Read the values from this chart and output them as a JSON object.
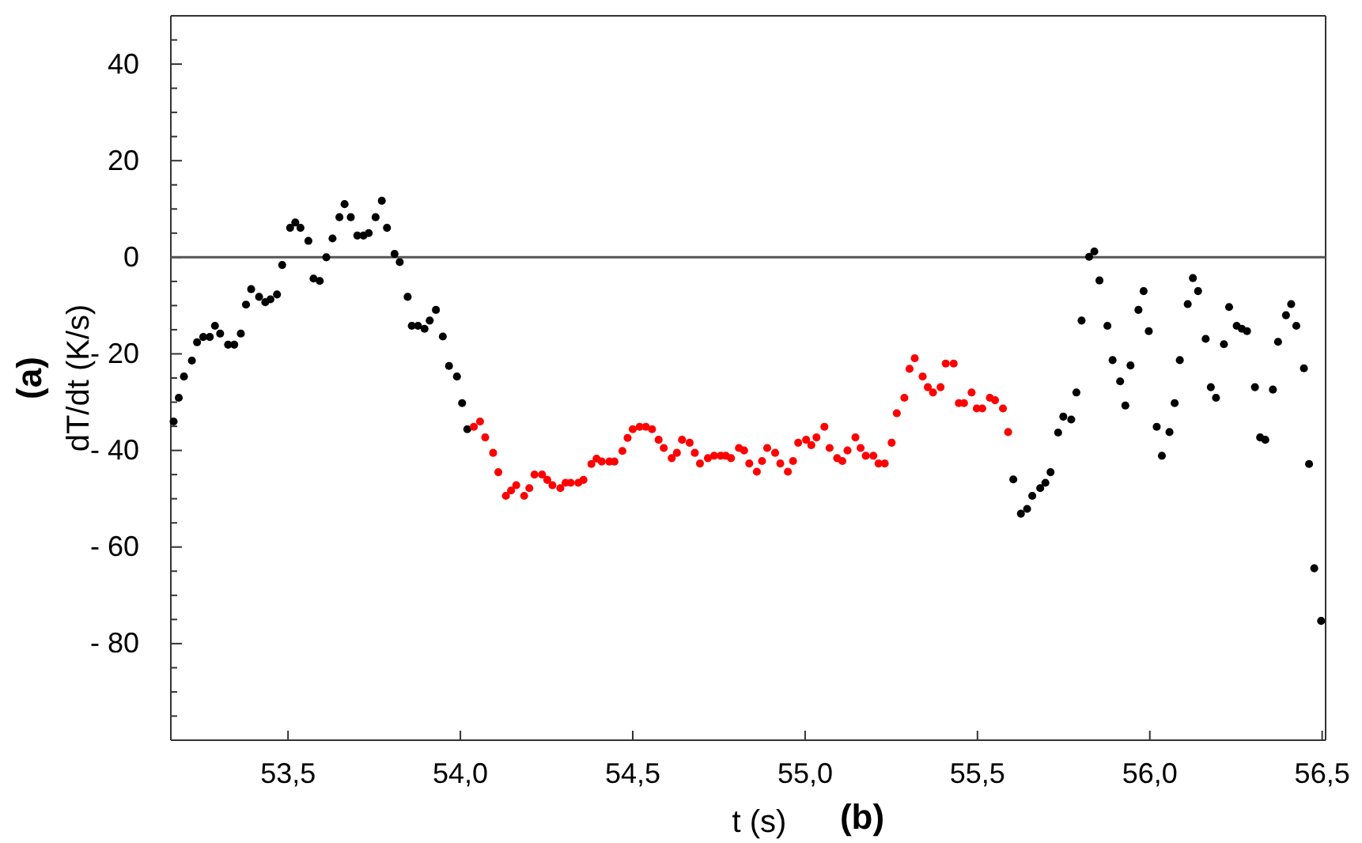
{
  "chart_data": {
    "type": "scatter",
    "xlabel": "t (s)",
    "ylabel": "dT/dt (K/s)",
    "annotations": [
      "(a)",
      "(b)"
    ],
    "xlim": [
      53.16,
      56.51
    ],
    "ylim": [
      -100,
      50
    ],
    "xticks": [
      {
        "value": 53.5,
        "label": "53,5"
      },
      {
        "value": 54.0,
        "label": "54,0"
      },
      {
        "value": 54.5,
        "label": "54,5"
      },
      {
        "value": 55.0,
        "label": "55,0"
      },
      {
        "value": 55.5,
        "label": "55,5"
      },
      {
        "value": 56.0,
        "label": "56,0"
      },
      {
        "value": 56.5,
        "label": "56,5"
      }
    ],
    "yticks": [
      {
        "value": -95,
        "label": null
      },
      {
        "value": -90,
        "label": null
      },
      {
        "value": -85,
        "label": null
      },
      {
        "value": -80,
        "label": "- 80"
      },
      {
        "value": -75,
        "label": null
      },
      {
        "value": -70,
        "label": null
      },
      {
        "value": -65,
        "label": null
      },
      {
        "value": -60,
        "label": "- 60"
      },
      {
        "value": -55,
        "label": null
      },
      {
        "value": -50,
        "label": null
      },
      {
        "value": -45,
        "label": null
      },
      {
        "value": -40,
        "label": "- 40"
      },
      {
        "value": -35,
        "label": null
      },
      {
        "value": -30,
        "label": null
      },
      {
        "value": -25,
        "label": null
      },
      {
        "value": -20,
        "label": "- 20"
      },
      {
        "value": -15,
        "label": null
      },
      {
        "value": -10,
        "label": null
      },
      {
        "value": -5,
        "label": null
      },
      0,
      {
        "value": 5,
        "label": null
      },
      {
        "value": 10,
        "label": null
      },
      {
        "value": 15,
        "label": null
      },
      20,
      {
        "value": 25,
        "label": null
      },
      {
        "value": 30,
        "label": null
      },
      {
        "value": 35,
        "label": null
      },
      40,
      {
        "value": 45,
        "label": null
      }
    ],
    "ref_lines": [
      {
        "axis": "y",
        "value": 0,
        "color": "#555555"
      }
    ],
    "marker": "circle",
    "grid": false,
    "series": [
      {
        "color": "#000000",
        "x": [
          53.168,
          53.183,
          53.198,
          53.221,
          53.236,
          53.254,
          53.273,
          53.288,
          53.303,
          53.326,
          53.344,
          53.363,
          53.378,
          53.393,
          53.416,
          53.434,
          53.449,
          53.468,
          53.483,
          53.506,
          53.521,
          53.536,
          53.559,
          53.574,
          53.592,
          53.611,
          53.629,
          53.649,
          53.664,
          53.682,
          53.701,
          53.719,
          53.734,
          53.754,
          53.772,
          53.787,
          53.809,
          53.824,
          53.847,
          53.859,
          53.877,
          53.896,
          53.911,
          53.929,
          53.949,
          53.967,
          53.99,
          54.005,
          54.02,
          55.604,
          55.626,
          55.644,
          55.659,
          55.682,
          55.697,
          55.712,
          55.734,
          55.749,
          55.772,
          55.787,
          55.802,
          55.824,
          55.839,
          55.854,
          55.877,
          55.892,
          55.914,
          55.929,
          55.944,
          55.967,
          55.982,
          55.997,
          56.02,
          56.035,
          56.057,
          56.072,
          56.087,
          56.11,
          56.125,
          56.14,
          56.162,
          56.177,
          56.192,
          56.215,
          56.23,
          56.252,
          56.267,
          56.282,
          56.305,
          56.32,
          56.335,
          56.357,
          56.372,
          56.395,
          56.41,
          56.425,
          56.447,
          56.462,
          56.477,
          56.497
        ],
        "values": [
          -34.0,
          -29.1,
          -24.7,
          -21.4,
          -17.6,
          -16.5,
          -16.5,
          -14.2,
          -15.8,
          -18.1,
          -18.1,
          -15.8,
          -9.8,
          -6.6,
          -8.2,
          -9.3,
          -8.7,
          -7.7,
          -1.6,
          6.1,
          7.2,
          6.1,
          3.4,
          -4.4,
          -4.9,
          0.0,
          3.9,
          8.3,
          11.0,
          8.3,
          4.5,
          4.5,
          5.0,
          8.3,
          11.7,
          6.1,
          0.7,
          -1.0,
          -8.2,
          -14.2,
          -14.2,
          -14.8,
          -13.1,
          -10.9,
          -16.4,
          -22.5,
          -24.7,
          -30.2,
          -35.6,
          -46.0,
          -53.1,
          -52.1,
          -49.4,
          -47.8,
          -46.7,
          -44.5,
          -36.3,
          -33.0,
          -33.6,
          -28.0,
          -13.1,
          0.1,
          1.2,
          -4.8,
          -14.2,
          -21.3,
          -25.7,
          -30.7,
          -22.4,
          -10.9,
          -7.0,
          -15.3,
          -35.1,
          -41.1,
          -36.2,
          -30.2,
          -21.3,
          -9.7,
          -4.3,
          -7.0,
          -16.9,
          -26.9,
          -29.1,
          -18.0,
          -10.3,
          -14.2,
          -14.8,
          -15.3,
          -26.9,
          -37.3,
          -37.8,
          -27.4,
          -17.5,
          -12.0,
          -9.7,
          -14.2,
          -23.0,
          -42.8,
          -64.4,
          -75.3
        ]
      },
      {
        "color": "#ff0000",
        "x": [
          54.039,
          54.057,
          54.072,
          54.095,
          54.11,
          54.132,
          54.147,
          54.162,
          54.185,
          54.2,
          54.215,
          54.237,
          54.252,
          54.267,
          54.29,
          54.305,
          54.32,
          54.342,
          54.357,
          54.38,
          54.395,
          54.41,
          54.432,
          54.447,
          54.47,
          54.485,
          54.5,
          54.52,
          54.538,
          54.556,
          54.575,
          54.59,
          54.613,
          54.628,
          54.643,
          54.665,
          54.68,
          54.695,
          54.718,
          54.736,
          54.755,
          54.77,
          54.785,
          54.808,
          54.823,
          54.838,
          54.86,
          54.875,
          54.89,
          54.913,
          54.928,
          54.95,
          54.965,
          54.98,
          55.003,
          55.018,
          55.033,
          55.056,
          55.071,
          55.093,
          55.108,
          55.123,
          55.146,
          55.161,
          55.176,
          55.198,
          55.213,
          55.231,
          55.251,
          55.266,
          55.288,
          55.303,
          55.318,
          55.341,
          55.356,
          55.371,
          55.393,
          55.408,
          55.431,
          55.446,
          55.461,
          55.483,
          55.498,
          55.514,
          55.536,
          55.551,
          55.574,
          55.589
        ],
        "values": [
          -35.1,
          -34.0,
          -37.3,
          -40.5,
          -44.5,
          -49.4,
          -48.3,
          -47.2,
          -49.4,
          -47.8,
          -45.0,
          -45.0,
          -46.1,
          -47.2,
          -47.8,
          -46.7,
          -46.7,
          -46.7,
          -46.1,
          -42.8,
          -41.7,
          -42.3,
          -42.3,
          -42.3,
          -40.1,
          -37.4,
          -35.6,
          -35.1,
          -35.1,
          -35.6,
          -37.8,
          -39.5,
          -41.6,
          -40.5,
          -37.8,
          -38.4,
          -40.5,
          -42.7,
          -41.6,
          -41.1,
          -41.1,
          -41.1,
          -41.6,
          -39.5,
          -40.0,
          -42.7,
          -44.4,
          -42.2,
          -39.5,
          -40.5,
          -42.7,
          -44.4,
          -42.2,
          -38.4,
          -37.8,
          -38.9,
          -37.3,
          -35.1,
          -39.5,
          -41.6,
          -42.2,
          -40.0,
          -37.3,
          -39.5,
          -41.1,
          -41.1,
          -42.7,
          -42.7,
          -38.4,
          -32.3,
          -29.1,
          -23.1,
          -20.9,
          -24.7,
          -26.9,
          -28.0,
          -26.9,
          -22.0,
          -22.0,
          -30.2,
          -30.2,
          -28.0,
          -31.3,
          -31.3,
          -29.1,
          -29.6,
          -31.3,
          -36.2
        ]
      }
    ]
  }
}
